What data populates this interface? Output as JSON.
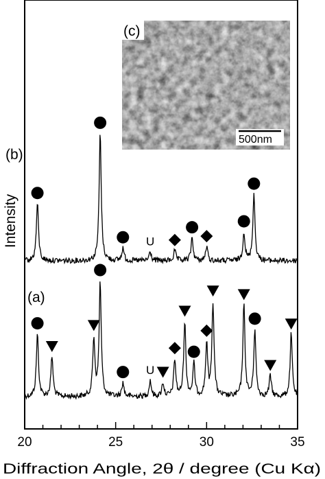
{
  "chart_data": {
    "type": "line",
    "xlabel": "Diffraction Angle, 2θ  / degree (Cu Kα)",
    "ylabel": "Intensity",
    "xlim": [
      20,
      35
    ],
    "xticks": [
      "20",
      "25",
      "30",
      "35"
    ],
    "grid": false,
    "legend": "none",
    "series": [
      {
        "panel_label": "(a)",
        "peaks": [
          {
            "x": 20.7,
            "h": 0.55
          },
          {
            "x": 21.5,
            "h": 0.35
          },
          {
            "x": 23.8,
            "h": 0.5
          },
          {
            "x": 24.15,
            "h": 1.0
          },
          {
            "x": 25.4,
            "h": 0.12
          },
          {
            "x": 26.9,
            "h": 0.14
          },
          {
            "x": 27.6,
            "h": 0.12
          },
          {
            "x": 28.25,
            "h": 0.32
          },
          {
            "x": 28.8,
            "h": 0.65
          },
          {
            "x": 29.3,
            "h": 0.28
          },
          {
            "x": 30.0,
            "h": 0.45
          },
          {
            "x": 30.35,
            "h": 0.82
          },
          {
            "x": 32.05,
            "h": 0.8
          },
          {
            "x": 32.65,
            "h": 0.58
          },
          {
            "x": 33.5,
            "h": 0.18
          },
          {
            "x": 34.65,
            "h": 0.55
          }
        ],
        "markers": [
          {
            "shape": "circle",
            "x": 20.7
          },
          {
            "shape": "triangle",
            "x": 21.5
          },
          {
            "shape": "triangle",
            "x": 23.8
          },
          {
            "shape": "circle",
            "x": 24.15
          },
          {
            "shape": "circle",
            "x": 25.4
          },
          {
            "shape": "text",
            "x": 26.9,
            "label": "U"
          },
          {
            "shape": "triangle",
            "x": 27.6
          },
          {
            "shape": "diamond",
            "x": 28.25
          },
          {
            "shape": "triangle",
            "x": 28.8
          },
          {
            "shape": "circle",
            "x": 29.3
          },
          {
            "shape": "diamond",
            "x": 30.0
          },
          {
            "shape": "triangle",
            "x": 30.35
          },
          {
            "shape": "triangle",
            "x": 32.05
          },
          {
            "shape": "circle",
            "x": 32.65
          },
          {
            "shape": "triangle",
            "x": 33.5
          },
          {
            "shape": "triangle",
            "x": 34.65
          }
        ]
      },
      {
        "panel_label": "(b)",
        "peaks": [
          {
            "x": 20.7,
            "h": 0.45
          },
          {
            "x": 24.15,
            "h": 1.0
          },
          {
            "x": 25.4,
            "h": 0.1
          },
          {
            "x": 26.9,
            "h": 0.07
          },
          {
            "x": 28.25,
            "h": 0.08
          },
          {
            "x": 29.2,
            "h": 0.18
          },
          {
            "x": 30.0,
            "h": 0.11
          },
          {
            "x": 32.05,
            "h": 0.22
          },
          {
            "x": 32.6,
            "h": 0.52
          }
        ],
        "markers": [
          {
            "shape": "circle",
            "x": 20.7
          },
          {
            "shape": "circle",
            "x": 24.15
          },
          {
            "shape": "circle",
            "x": 25.4
          },
          {
            "shape": "text",
            "x": 26.9,
            "label": "U"
          },
          {
            "shape": "diamond",
            "x": 28.25
          },
          {
            "shape": "circle",
            "x": 29.2
          },
          {
            "shape": "diamond",
            "x": 30.0
          },
          {
            "shape": "circle",
            "x": 32.05
          },
          {
            "shape": "circle",
            "x": 32.6
          }
        ]
      }
    ],
    "inset": {
      "panel_label": "(c)",
      "scale_bar_label": "500nm"
    }
  }
}
